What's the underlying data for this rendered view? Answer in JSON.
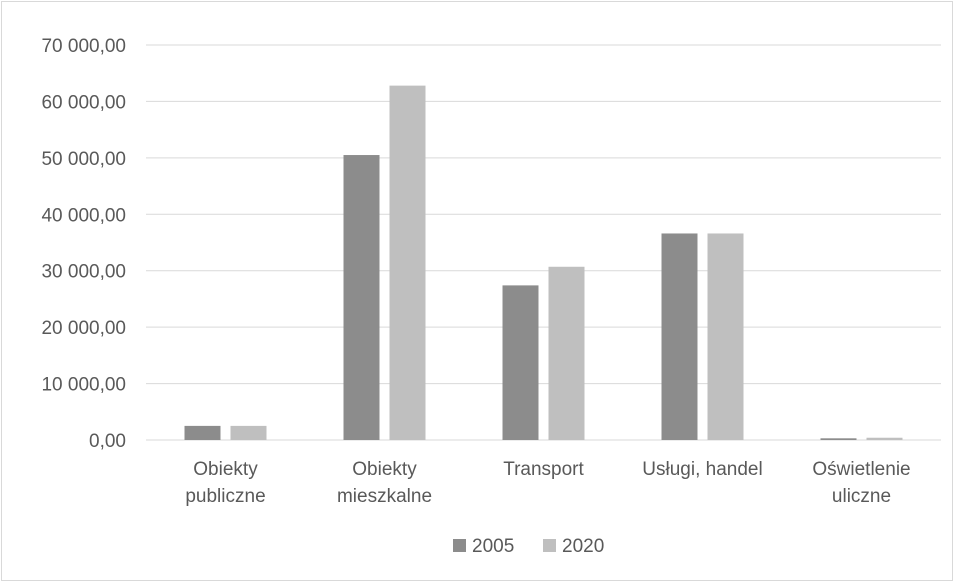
{
  "chart_data": {
    "type": "bar",
    "categories": [
      [
        "Obiekty",
        "publiczne"
      ],
      [
        "Obiekty",
        "mieszkalne"
      ],
      [
        "Transport"
      ],
      [
        "Usługi, handel"
      ],
      [
        "Oświetlenie",
        "uliczne"
      ]
    ],
    "series": [
      {
        "name": "2005",
        "color": "#8c8c8c",
        "values": [
          2500,
          50500,
          27400,
          36600,
          300
        ]
      },
      {
        "name": "2020",
        "color": "#bfbfbf",
        "values": [
          2500,
          62800,
          30700,
          36600,
          400
        ]
      }
    ],
    "yticks": [
      "0,00",
      "10 000,00",
      "20 000,00",
      "30 000,00",
      "40 000,00",
      "50 000,00",
      "60 000,00",
      "70 000,00"
    ],
    "ylim": [
      0,
      70000
    ],
    "grid": true,
    "legend": "bottom"
  }
}
